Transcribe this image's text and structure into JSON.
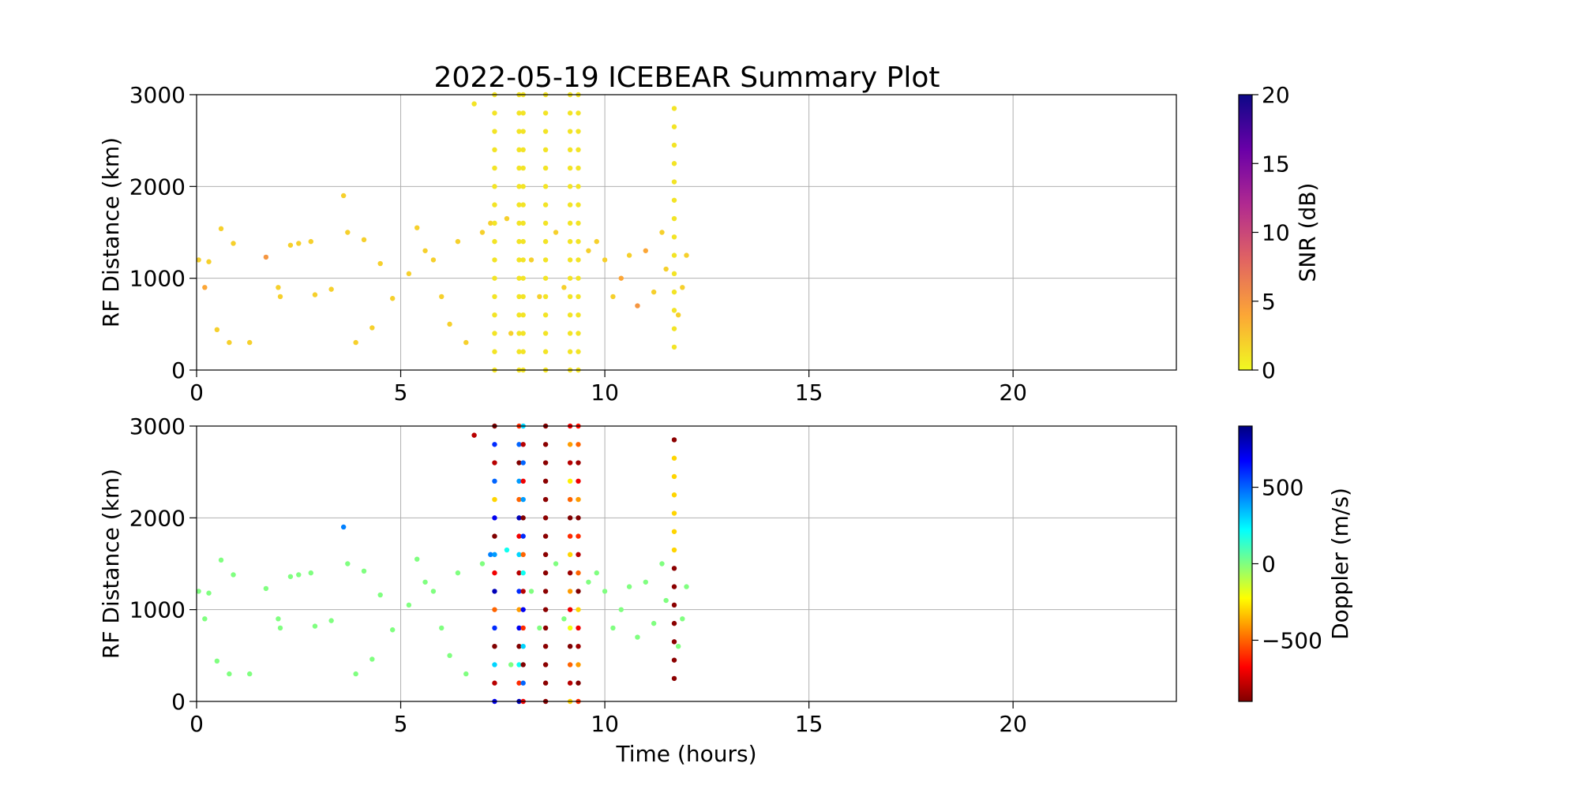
{
  "chart_data": [
    {
      "type": "scatter",
      "title": "2022-05-19 ICEBEAR Summary Plot",
      "ylabel": "RF Distance (km)",
      "xlim": [
        0,
        24
      ],
      "xticks": [
        0,
        5,
        10,
        15,
        20
      ],
      "ylim": [
        0,
        3000
      ],
      "yticks": [
        0,
        1000,
        2000,
        3000
      ],
      "grid": true,
      "colorbar": {
        "label": "SNR (dB)",
        "lim": [
          0,
          20
        ],
        "ticks": [
          0,
          5,
          10,
          15,
          20
        ],
        "colors": [
          "#f0f921",
          "#fca636",
          "#e16462",
          "#b12a90",
          "#6a00a8",
          "#0d0887"
        ]
      },
      "x": [
        0.05,
        0.2,
        0.3,
        0.5,
        0.6,
        0.8,
        0.9,
        1.3,
        1.7,
        2.0,
        2.05,
        2.3,
        2.5,
        2.8,
        2.9,
        3.3,
        3.6,
        3.7,
        3.9,
        4.1,
        4.3,
        4.5,
        4.8,
        5.2,
        5.4,
        5.6,
        5.8,
        6.0,
        6.2,
        6.4,
        6.6,
        6.8,
        7.0,
        7.2,
        7.6,
        7.7,
        8.2,
        8.4,
        8.8,
        9.0,
        9.6,
        9.8,
        10.0,
        10.2,
        10.4,
        10.6,
        10.8,
        11.0,
        11.2,
        11.4,
        11.5,
        11.9,
        11.8,
        12.0,
        7.3,
        7.3,
        7.3,
        7.3,
        7.3,
        7.3,
        7.3,
        7.3,
        7.3,
        7.3,
        7.3,
        7.3,
        7.3,
        7.3,
        7.3,
        7.3,
        7.9,
        7.9,
        7.9,
        7.9,
        7.9,
        7.9,
        7.9,
        7.9,
        7.9,
        7.9,
        7.9,
        7.9,
        7.9,
        7.9,
        7.9,
        7.9,
        8,
        8,
        8,
        8,
        8,
        8,
        8,
        8,
        8,
        8,
        8,
        8,
        8,
        8,
        8,
        8,
        8.55,
        8.55,
        8.55,
        8.55,
        8.55,
        8.55,
        8.55,
        8.55,
        8.55,
        8.55,
        8.55,
        8.55,
        8.55,
        8.55,
        8.55,
        8.55,
        9.15,
        9.15,
        9.15,
        9.15,
        9.15,
        9.15,
        9.15,
        9.15,
        9.15,
        9.15,
        9.15,
        9.15,
        9.15,
        9.15,
        9.15,
        9.15,
        9.35,
        9.35,
        9.35,
        9.35,
        9.35,
        9.35,
        9.35,
        9.35,
        9.35,
        9.35,
        9.35,
        9.35,
        9.35,
        9.35,
        9.35,
        9.35,
        11.7,
        11.7,
        11.7,
        11.7,
        11.7,
        11.7,
        11.7,
        11.7,
        11.7,
        11.7,
        11.7,
        11.7,
        11.7,
        11.7
      ],
      "y": [
        1200,
        900,
        1180,
        440,
        1540,
        300,
        1380,
        300,
        1230,
        900,
        800,
        1360,
        1380,
        1400,
        820,
        880,
        1900,
        1500,
        300,
        1420,
        460,
        1160,
        780,
        1050,
        1550,
        1300,
        1200,
        800,
        500,
        1400,
        300,
        2900,
        1500,
        1600,
        1650,
        400,
        1200,
        800,
        1500,
        900,
        1300,
        1400,
        1200,
        800,
        1000,
        1250,
        700,
        1300,
        850,
        1500,
        1100,
        900,
        600,
        1250,
        0,
        200,
        400,
        600,
        800,
        1000,
        1200,
        1400,
        1600,
        1800,
        2000,
        2200,
        2400,
        2600,
        2800,
        3000,
        0,
        200,
        400,
        600,
        800,
        1000,
        1200,
        1400,
        1600,
        1800,
        2000,
        2200,
        2400,
        2600,
        2800,
        3000,
        0,
        200,
        400,
        600,
        800,
        1000,
        1200,
        1400,
        1600,
        1800,
        2000,
        2200,
        2400,
        2600,
        2800,
        3000,
        0,
        200,
        400,
        600,
        800,
        1000,
        1200,
        1400,
        1600,
        1800,
        2000,
        2200,
        2400,
        2600,
        2800,
        3000,
        0,
        200,
        400,
        600,
        800,
        1000,
        1200,
        1400,
        1600,
        1800,
        2000,
        2200,
        2400,
        2600,
        2800,
        3000,
        0,
        200,
        400,
        600,
        800,
        1000,
        1200,
        1400,
        1600,
        1800,
        2000,
        2200,
        2400,
        2600,
        2800,
        3000,
        250,
        450,
        650,
        850,
        1050,
        1250,
        1450,
        1650,
        1850,
        2050,
        2250,
        2450,
        2650,
        2850
      ],
      "c": [
        2,
        4,
        2,
        2,
        2,
        2,
        2,
        2,
        5,
        2,
        2,
        2,
        2,
        2,
        2,
        2,
        2,
        2,
        2,
        2,
        2,
        2,
        2,
        2,
        2,
        2,
        2,
        2,
        2,
        2,
        2,
        1,
        2,
        2,
        2,
        2,
        2,
        2,
        2,
        2,
        2,
        2,
        2,
        2,
        4,
        2,
        5,
        4,
        2,
        2,
        2,
        2,
        2,
        2,
        1,
        1,
        1,
        1,
        1,
        1,
        1,
        1,
        1,
        1,
        1,
        1,
        1,
        1,
        1,
        1,
        1,
        1,
        1,
        1,
        1,
        1,
        1,
        1,
        1,
        1,
        1,
        1,
        1,
        1,
        1,
        1,
        1,
        1,
        1,
        1,
        1,
        1,
        1,
        1,
        1,
        1,
        1,
        1,
        1,
        1,
        1,
        1,
        1,
        1,
        1,
        1,
        1,
        1,
        1,
        1,
        1,
        1,
        1,
        1,
        1,
        1,
        1,
        1,
        1,
        1,
        1,
        1,
        1,
        1,
        1,
        1,
        1,
        1,
        1,
        1,
        1,
        1,
        1,
        1,
        1,
        1,
        1,
        1,
        1,
        1,
        1,
        1,
        1,
        1,
        1,
        1,
        1,
        1,
        1,
        1,
        1,
        1,
        1,
        1,
        1,
        1,
        1,
        1,
        1,
        1,
        1,
        1,
        1,
        1
      ]
    },
    {
      "type": "scatter",
      "xlabel": "Time (hours)",
      "ylabel": "RF Distance (km)",
      "xlim": [
        0,
        24
      ],
      "xticks": [
        0,
        5,
        10,
        15,
        20
      ],
      "ylim": [
        0,
        3000
      ],
      "yticks": [
        0,
        1000,
        2000,
        3000
      ],
      "grid": true,
      "colorbar": {
        "label": "Doppler (m/s)",
        "lim": [
          -900,
          900
        ],
        "ticks": [
          {
            "value": -500,
            "label": "−500"
          },
          0,
          500
        ],
        "colors": [
          "#800000",
          "#ff0000",
          "#ff8000",
          "#ffff00",
          "#80ff80",
          "#00ffff",
          "#0080ff",
          "#0000ff",
          "#000080"
        ]
      },
      "x": [
        0.05,
        0.2,
        0.3,
        0.5,
        0.6,
        0.8,
        0.9,
        1.3,
        1.7,
        2.0,
        2.05,
        2.3,
        2.5,
        2.8,
        2.9,
        3.3,
        3.6,
        3.7,
        3.9,
        4.1,
        4.3,
        4.5,
        4.8,
        5.2,
        5.4,
        5.6,
        5.8,
        6.0,
        6.2,
        6.4,
        6.6,
        6.8,
        7.0,
        7.2,
        7.6,
        7.7,
        8.2,
        8.4,
        8.8,
        9.0,
        9.6,
        9.8,
        10.0,
        10.2,
        10.4,
        10.6,
        10.8,
        11.0,
        11.2,
        11.4,
        11.5,
        11.9,
        11.8,
        12.0,
        7.3,
        7.3,
        7.3,
        7.3,
        7.3,
        7.3,
        7.3,
        7.3,
        7.3,
        7.3,
        7.3,
        7.3,
        7.3,
        7.3,
        7.3,
        7.3,
        7.9,
        7.9,
        7.9,
        7.9,
        7.9,
        7.9,
        7.9,
        7.9,
        7.9,
        7.9,
        7.9,
        7.9,
        7.9,
        7.9,
        7.9,
        7.9,
        8,
        8,
        8,
        8,
        8,
        8,
        8,
        8,
        8,
        8,
        8,
        8,
        8,
        8,
        8,
        8,
        8.55,
        8.55,
        8.55,
        8.55,
        8.55,
        8.55,
        8.55,
        8.55,
        8.55,
        8.55,
        8.55,
        8.55,
        8.55,
        8.55,
        8.55,
        8.55,
        9.15,
        9.15,
        9.15,
        9.15,
        9.15,
        9.15,
        9.15,
        9.15,
        9.15,
        9.15,
        9.15,
        9.15,
        9.15,
        9.15,
        9.15,
        9.15,
        9.35,
        9.35,
        9.35,
        9.35,
        9.35,
        9.35,
        9.35,
        9.35,
        9.35,
        9.35,
        9.35,
        9.35,
        9.35,
        9.35,
        9.35,
        9.35,
        11.7,
        11.7,
        11.7,
        11.7,
        11.7,
        11.7,
        11.7,
        11.7,
        11.7,
        11.7,
        11.7,
        11.7,
        11.7,
        11.7
      ],
      "y": [
        1200,
        900,
        1180,
        440,
        1540,
        300,
        1380,
        300,
        1230,
        900,
        800,
        1360,
        1380,
        1400,
        820,
        880,
        1900,
        1500,
        300,
        1420,
        460,
        1160,
        780,
        1050,
        1550,
        1300,
        1200,
        800,
        500,
        1400,
        300,
        2900,
        1500,
        1600,
        1650,
        400,
        1200,
        800,
        1500,
        900,
        1300,
        1400,
        1200,
        800,
        1000,
        1250,
        700,
        1300,
        850,
        1500,
        1100,
        900,
        600,
        1250,
        0,
        200,
        400,
        600,
        800,
        1000,
        1200,
        1400,
        1600,
        1800,
        2000,
        2200,
        2400,
        2600,
        2800,
        3000,
        0,
        200,
        400,
        600,
        800,
        1000,
        1200,
        1400,
        1600,
        1800,
        2000,
        2200,
        2400,
        2600,
        2800,
        3000,
        0,
        200,
        400,
        600,
        800,
        1000,
        1200,
        1400,
        1600,
        1800,
        2000,
        2200,
        2400,
        2600,
        2800,
        3000,
        0,
        200,
        400,
        600,
        800,
        1000,
        1200,
        1400,
        1600,
        1800,
        2000,
        2200,
        2400,
        2600,
        2800,
        3000,
        0,
        200,
        400,
        600,
        800,
        1000,
        1200,
        1400,
        1600,
        1800,
        2000,
        2200,
        2400,
        2600,
        2800,
        3000,
        0,
        200,
        400,
        600,
        800,
        1000,
        1200,
        1400,
        1600,
        1800,
        2000,
        2200,
        2400,
        2600,
        2800,
        3000,
        250,
        450,
        650,
        850,
        1050,
        1250,
        1450,
        1650,
        1850,
        2050,
        2250,
        2450,
        2650,
        2850
      ],
      "c": [
        0,
        0,
        0,
        0,
        0,
        0,
        0,
        0,
        0,
        0,
        0,
        0,
        0,
        0,
        0,
        0,
        450,
        0,
        0,
        0,
        0,
        0,
        0,
        0,
        0,
        0,
        0,
        0,
        0,
        0,
        0,
        -800,
        0,
        450,
        200,
        0,
        0,
        0,
        0,
        0,
        0,
        0,
        0,
        0,
        0,
        0,
        0,
        0,
        0,
        0,
        0,
        0,
        0,
        0,
        700,
        -800,
        300,
        -900,
        600,
        -500,
        800,
        -700,
        400,
        -900,
        700,
        -300,
        500,
        -800,
        600,
        -900,
        800,
        -600,
        200,
        -900,
        700,
        -400,
        600,
        -800,
        300,
        -700,
        800,
        -500,
        400,
        -900,
        500,
        -600,
        -700,
        500,
        -900,
        300,
        -600,
        700,
        -800,
        200,
        -500,
        600,
        -900,
        400,
        -700,
        500,
        -800,
        300,
        -880,
        -880,
        -880,
        -880,
        -880,
        -880,
        -880,
        -880,
        -880,
        -880,
        -880,
        -880,
        -880,
        -880,
        -880,
        -880,
        -300,
        -800,
        -500,
        -900,
        -200,
        -700,
        -400,
        -850,
        -300,
        -600,
        -900,
        -500,
        -250,
        -800,
        -400,
        -700,
        -600,
        -900,
        -400,
        -850,
        -700,
        -300,
        -900,
        -500,
        -800,
        -600,
        -900,
        -400,
        -700,
        -850,
        -500,
        -650,
        -880,
        -880,
        -880,
        -880,
        -880,
        -880,
        -880,
        -300,
        -300,
        -300,
        -300,
        -300,
        -300,
        -880
      ]
    }
  ]
}
